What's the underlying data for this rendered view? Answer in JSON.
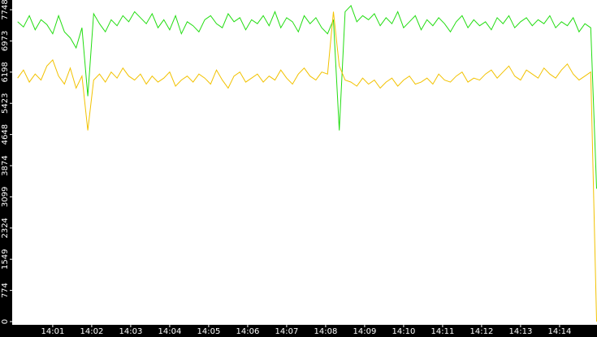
{
  "chart_data": {
    "type": "line",
    "x": [
      0.1,
      0.25,
      0.4,
      0.55,
      0.7,
      0.85,
      1,
      1.15,
      1.3,
      1.45,
      1.6,
      1.75,
      1.9,
      2.05,
      2.2,
      2.35,
      2.5,
      2.65,
      2.8,
      2.95,
      3.1,
      3.25,
      3.4,
      3.55,
      3.7,
      3.85,
      4,
      4.15,
      4.3,
      4.45,
      4.6,
      4.75,
      4.9,
      5.05,
      5.2,
      5.35,
      5.5,
      5.65,
      5.8,
      5.95,
      6.1,
      6.25,
      6.4,
      6.55,
      6.7,
      6.85,
      7,
      7.15,
      7.3,
      7.45,
      7.6,
      7.75,
      7.9,
      8.05,
      8.2,
      8.35,
      8.5,
      8.65,
      8.8,
      8.95,
      9.1,
      9.25,
      9.4,
      9.55,
      9.7,
      9.85,
      10,
      10.15,
      10.3,
      10.45,
      10.6,
      10.75,
      10.9,
      11.05,
      11.2,
      11.35,
      11.5,
      11.65,
      11.8,
      11.95,
      12.1,
      12.25,
      12.4,
      12.55,
      12.7,
      12.85,
      13,
      13.15,
      13.3,
      13.45,
      13.6,
      13.75,
      13.9,
      14.05,
      14.2,
      14.35,
      14.5,
      14.65,
      14.8,
      14.95
    ],
    "series": [
      {
        "color": "#22dd11",
        "values": [
          7450,
          7320,
          7600,
          7250,
          7500,
          7380,
          7150,
          7600,
          7200,
          7050,
          6800,
          7300,
          5600,
          7650,
          7400,
          7200,
          7500,
          7350,
          7600,
          7450,
          7700,
          7550,
          7400,
          7650,
          7300,
          7500,
          7250,
          7600,
          7150,
          7450,
          7350,
          7200,
          7500,
          7600,
          7400,
          7300,
          7650,
          7450,
          7550,
          7250,
          7500,
          7400,
          7600,
          7350,
          7700,
          7300,
          7550,
          7450,
          7200,
          7600,
          7400,
          7550,
          7300,
          7150,
          7500,
          4750,
          7700,
          7850,
          7450,
          7600,
          7500,
          7650,
          7350,
          7550,
          7400,
          7700,
          7300,
          7450,
          7600,
          7250,
          7500,
          7350,
          7550,
          7400,
          7200,
          7450,
          7600,
          7300,
          7500,
          7350,
          7450,
          7250,
          7550,
          7400,
          7600,
          7300,
          7450,
          7550,
          7350,
          7500,
          7400,
          7600,
          7300,
          7450,
          7350,
          7550,
          7200,
          7400,
          7300,
          3300
        ]
      },
      {
        "color": "#f2c200",
        "values": [
          6050,
          6250,
          5950,
          6150,
          6000,
          6350,
          6500,
          6100,
          5900,
          6300,
          5800,
          6100,
          4750,
          6000,
          6150,
          5950,
          6200,
          6050,
          6300,
          6100,
          6000,
          6150,
          5900,
          6100,
          5950,
          6050,
          6200,
          5850,
          6000,
          6100,
          5950,
          6150,
          6050,
          5900,
          6250,
          6000,
          5800,
          6100,
          6200,
          5950,
          6050,
          6150,
          5950,
          6100,
          6000,
          6250,
          6050,
          5900,
          6150,
          6300,
          6100,
          6000,
          6200,
          6150,
          7700,
          6350,
          6000,
          5950,
          5850,
          6050,
          5900,
          6000,
          5800,
          5950,
          6050,
          5850,
          6000,
          6100,
          5900,
          5950,
          6050,
          5900,
          6150,
          6000,
          5950,
          6100,
          6200,
          5950,
          6050,
          6000,
          6150,
          6250,
          6050,
          6200,
          6350,
          6100,
          6000,
          6250,
          6150,
          6050,
          6300,
          6150,
          6050,
          6250,
          6400,
          6150,
          6000,
          6100,
          6200,
          0
        ]
      }
    ],
    "xlim": [
      -0.04,
      14.96
    ],
    "xticks": [
      {
        "value": 1,
        "label": "14:01"
      },
      {
        "value": 2,
        "label": "14:02"
      },
      {
        "value": 3,
        "label": "14:03"
      },
      {
        "value": 4,
        "label": "14:04"
      },
      {
        "value": 5,
        "label": "14:05"
      },
      {
        "value": 6,
        "label": "14:06"
      },
      {
        "value": 7,
        "label": "14:07"
      },
      {
        "value": 8,
        "label": "14:08"
      },
      {
        "value": 9,
        "label": "14:09"
      },
      {
        "value": 10,
        "label": "14:10"
      },
      {
        "value": 11,
        "label": "14:11"
      },
      {
        "value": 12,
        "label": "14:12"
      },
      {
        "value": 13,
        "label": "14:13"
      },
      {
        "value": 14,
        "label": "14:14"
      }
    ],
    "ylim": [
      0,
      7990
    ],
    "yticks": [
      0,
      774,
      1549,
      2324,
      3099,
      3874,
      4648,
      5423,
      6198,
      6973,
      7748
    ]
  }
}
